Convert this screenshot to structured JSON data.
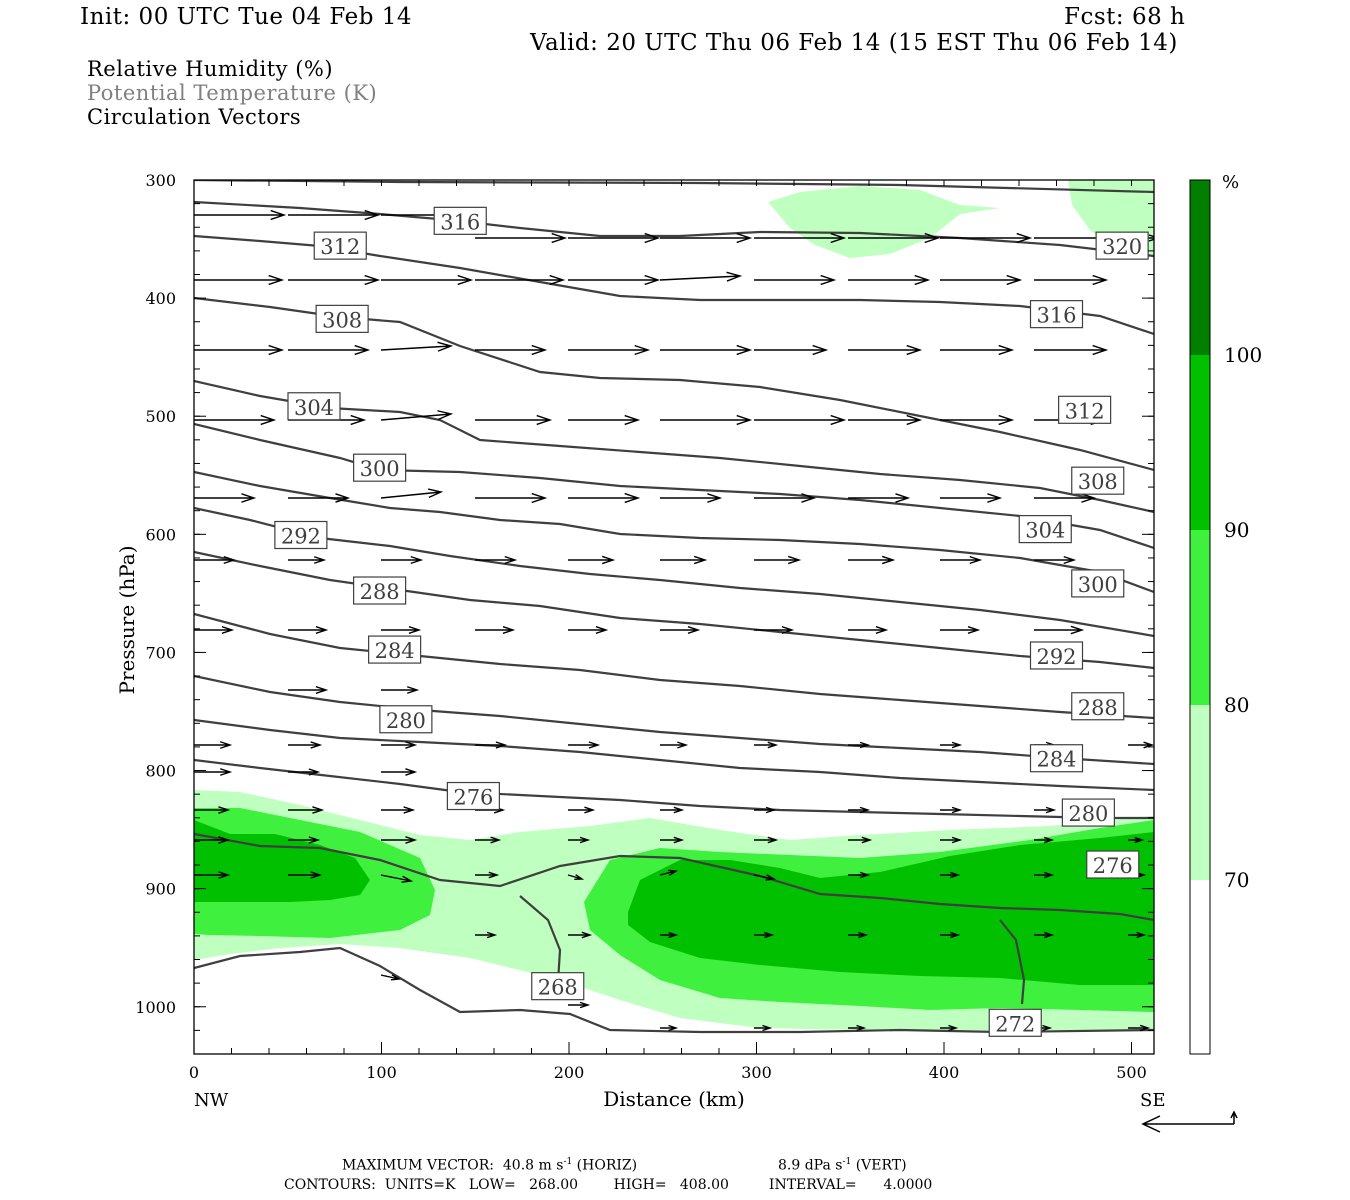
{
  "header": {
    "init": "Init: 00 UTC Tue 04 Feb 14",
    "fcst": "Fcst:   68 h",
    "valid": "Valid: 20 UTC Thu 06 Feb 14 (15 EST Thu 06 Feb 14)"
  },
  "legend": {
    "rh": "Relative Humidity (%)",
    "theta": "Potential Temperature (K)",
    "vectors": "Circulation Vectors"
  },
  "footer": {
    "max_vector_label": "MAXIMUM VECTOR:",
    "max_horiz_value": "40.8",
    "max_vert_value": "8.9",
    "unit_ms": "m s",
    "unit_dpas": "dPa s",
    "superscript": "-1",
    "horiz": "(HORIZ)",
    "vert": "(VERT)",
    "contours": "CONTOURS:  UNITS=K   LOW=   268.00        HIGH=   408.00         INTERVAL=      4.0000"
  },
  "colors": {
    "green_70_80": "#bfffbf",
    "green_80_90": "#3ff03f",
    "green_90_100": "#00c000",
    "green_100": "#007f00",
    "isentrope": "#3f3f3f",
    "vector": "#000000"
  },
  "chart_data": {
    "type": "cross-section",
    "xlabel": "Distance (km)",
    "ylabel": "Pressure (hPa)",
    "xlim": [
      0,
      512
    ],
    "ylim": [
      1040,
      300
    ],
    "x_ticks": [
      0,
      100,
      200,
      300,
      400,
      500
    ],
    "y_ticks": [
      300,
      400,
      500,
      600,
      700,
      800,
      900,
      1000
    ],
    "x_end_labels": [
      "NW",
      "SE"
    ],
    "colorbar": {
      "unit": "%",
      "levels": [
        70,
        80,
        90,
        100
      ]
    },
    "theta_labels": [
      {
        "v": "316",
        "x": 142,
        "p": 335
      },
      {
        "v": "312",
        "x": 78,
        "p": 356
      },
      {
        "v": "320",
        "x": 495,
        "p": 356
      },
      {
        "v": "308",
        "x": 79,
        "p": 418
      },
      {
        "v": "316",
        "x": 460,
        "p": 414
      },
      {
        "v": "304",
        "x": 64,
        "p": 492
      },
      {
        "v": "312",
        "x": 475,
        "p": 495
      },
      {
        "v": "300",
        "x": 99,
        "p": 544
      },
      {
        "v": "308",
        "x": 482,
        "p": 555
      },
      {
        "v": "292",
        "x": 57,
        "p": 601
      },
      {
        "v": "304",
        "x": 454,
        "p": 596
      },
      {
        "v": "288",
        "x": 99,
        "p": 648
      },
      {
        "v": "300",
        "x": 482,
        "p": 642
      },
      {
        "v": "284",
        "x": 107,
        "p": 698
      },
      {
        "v": "292",
        "x": 460,
        "p": 703
      },
      {
        "v": "280",
        "x": 113,
        "p": 757
      },
      {
        "v": "288",
        "x": 482,
        "p": 746
      },
      {
        "v": "284",
        "x": 460,
        "p": 790
      },
      {
        "v": "276",
        "x": 149,
        "p": 822
      },
      {
        "v": "280",
        "x": 477,
        "p": 836
      },
      {
        "v": "276",
        "x": 490,
        "p": 880
      },
      {
        "v": "268",
        "x": 194,
        "p": 983
      },
      {
        "v": "272",
        "x": 438,
        "p": 1014
      }
    ]
  }
}
